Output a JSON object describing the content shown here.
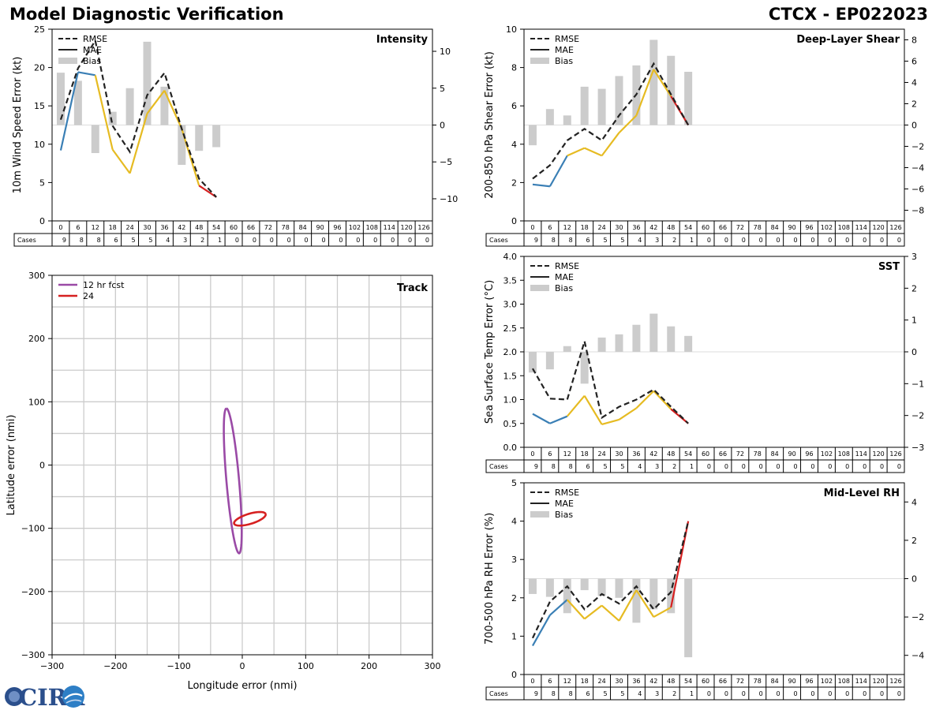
{
  "header": {
    "title": "Model Diagnostic Verification",
    "storm_id": "CTCX - EP022023"
  },
  "logo": {
    "text": "CIRA"
  },
  "colors": {
    "rmse": "#222222",
    "mae_early": "#3a7fb5",
    "mae_mid": "#e6bb22",
    "mae_late": "#d62020",
    "bias": "#cccccc",
    "grid": "#cccccc",
    "track_12": "#9a4aa6",
    "track_24": "#d62020"
  },
  "lead_times": [
    "0",
    "6",
    "12",
    "18",
    "24",
    "30",
    "36",
    "42",
    "48",
    "54",
    "60",
    "66",
    "72",
    "78",
    "84",
    "90",
    "96",
    "102",
    "108",
    "114",
    "120",
    "126"
  ],
  "cases": {
    "label": "Cases",
    "values": [
      "9",
      "8",
      "8",
      "6",
      "5",
      "5",
      "4",
      "3",
      "2",
      "1",
      "0",
      "0",
      "0",
      "0",
      "0",
      "0",
      "0",
      "0",
      "0",
      "0",
      "0",
      "0"
    ]
  },
  "legend_labels": {
    "rmse": "RMSE",
    "mae": "MAE",
    "bias": "Bias"
  },
  "chart_data": [
    {
      "id": "intensity",
      "type": "line",
      "title": "Intensity",
      "ylabel": "10m Wind Speed Error (kt)",
      "x": [
        0,
        6,
        12,
        18,
        24,
        30,
        36,
        42,
        48,
        54
      ],
      "ylim": [
        0,
        25
      ],
      "yticks": [
        "0",
        "5",
        "10",
        "15",
        "20",
        "25"
      ],
      "y2lim": [
        -13,
        13
      ],
      "y2ticks": [
        -10,
        -5,
        0,
        5,
        10
      ],
      "y2ticklabels": [
        "−10",
        "−5",
        "0",
        "5",
        "10"
      ],
      "series": [
        {
          "name": "RMSE",
          "values": [
            13.2,
            19.9,
            23.5,
            12.4,
            9.0,
            16.4,
            19.3,
            12.0,
            5.5,
            3.1
          ]
        },
        {
          "name": "MAE",
          "values": [
            9.2,
            19.4,
            19.0,
            9.3,
            6.2,
            14.0,
            17.0,
            12.0,
            4.6,
            3.1
          ]
        },
        {
          "name": "Bias",
          "values": [
            7.1,
            6.0,
            -3.8,
            1.8,
            5.0,
            11.3,
            5.2,
            -5.4,
            -3.5,
            -3.0
          ]
        }
      ]
    },
    {
      "id": "shear",
      "type": "line",
      "title": "Deep-Layer Shear",
      "ylabel": "200-850 hPa Shear Error (kt)",
      "x": [
        0,
        6,
        12,
        18,
        24,
        30,
        36,
        42,
        48,
        54
      ],
      "ylim": [
        0,
        10
      ],
      "yticks": [
        "0",
        "2",
        "4",
        "6",
        "8",
        "10"
      ],
      "y2lim": [
        -9,
        9
      ],
      "y2ticks": [
        -8,
        -6,
        -4,
        -2,
        0,
        2,
        4,
        6,
        8
      ],
      "y2ticklabels": [
        "−8",
        "−6",
        "−4",
        "−2",
        "0",
        "2",
        "4",
        "6",
        "8"
      ],
      "series": [
        {
          "name": "RMSE",
          "values": [
            2.2,
            2.9,
            4.2,
            4.8,
            4.2,
            5.5,
            6.6,
            8.2,
            6.6,
            5.0
          ]
        },
        {
          "name": "MAE",
          "values": [
            1.9,
            1.8,
            3.4,
            3.8,
            3.4,
            4.6,
            5.5,
            7.9,
            6.5,
            5.0
          ]
        },
        {
          "name": "Bias",
          "values": [
            -1.9,
            1.5,
            0.9,
            3.6,
            3.4,
            4.6,
            5.6,
            8.0,
            6.5,
            5.0
          ]
        }
      ]
    },
    {
      "id": "sst",
      "type": "line",
      "title": "SST",
      "ylabel": "Sea Surface Temp Error (°C)",
      "x": [
        0,
        6,
        12,
        18,
        24,
        30,
        36,
        42,
        48,
        54
      ],
      "ylim": [
        0,
        4
      ],
      "yticks": [
        "0.0",
        "0.5",
        "1.0",
        "1.5",
        "2.0",
        "2.5",
        "3.0",
        "3.5",
        "4.0"
      ],
      "y2lim": [
        -3,
        3
      ],
      "y2ticks": [
        -3,
        -2,
        -1,
        0,
        1,
        2,
        3
      ],
      "y2ticklabels": [
        "−3",
        "−2",
        "−1",
        "0",
        "1",
        "2",
        "3"
      ],
      "series": [
        {
          "name": "RMSE",
          "values": [
            1.65,
            1.02,
            1.0,
            2.22,
            0.62,
            0.85,
            1.0,
            1.21,
            0.85,
            0.5
          ]
        },
        {
          "name": "MAE",
          "values": [
            0.7,
            0.5,
            0.65,
            1.08,
            0.48,
            0.58,
            0.82,
            1.18,
            0.8,
            0.5
          ]
        },
        {
          "name": "Bias",
          "values": [
            -0.65,
            -0.55,
            0.18,
            -1.0,
            0.45,
            0.55,
            0.85,
            1.2,
            0.8,
            0.5
          ]
        }
      ]
    },
    {
      "id": "rh",
      "type": "line",
      "title": "Mid-Level RH",
      "ylabel": "700-500 hPa RH Error (%)",
      "x": [
        0,
        6,
        12,
        18,
        24,
        30,
        36,
        42,
        48,
        54
      ],
      "ylim": [
        0,
        5
      ],
      "yticks": [
        "0",
        "1",
        "2",
        "3",
        "4",
        "5"
      ],
      "y2lim": [
        -5,
        5
      ],
      "y2ticks": [
        -4,
        -2,
        0,
        2,
        4
      ],
      "y2ticklabels": [
        "−4",
        "−2",
        "0",
        "2",
        "4"
      ],
      "series": [
        {
          "name": "RMSE",
          "values": [
            0.95,
            1.9,
            2.3,
            1.7,
            2.1,
            1.85,
            2.3,
            1.7,
            2.15,
            4.0
          ]
        },
        {
          "name": "MAE",
          "values": [
            0.75,
            1.55,
            1.95,
            1.45,
            1.8,
            1.4,
            2.2,
            1.5,
            1.75,
            4.0
          ]
        },
        {
          "name": "Bias",
          "values": [
            -0.8,
            -0.95,
            -1.8,
            -0.6,
            -0.9,
            -1.0,
            -2.3,
            -1.6,
            -1.8,
            -4.1
          ]
        }
      ]
    },
    {
      "id": "track",
      "type": "line",
      "title": "Track",
      "xlabel": "Longitude error (nmi)",
      "ylabel": "Latitude error (nmi)",
      "xlim": [
        -300,
        300
      ],
      "ylim": [
        -300,
        300
      ],
      "xticks": [
        -300,
        -200,
        -100,
        0,
        100,
        200,
        300
      ],
      "xticklabels": [
        "−300",
        "−200",
        "−100",
        "0",
        "100",
        "200",
        "300"
      ],
      "yticks": [
        -300,
        -200,
        -100,
        0,
        100,
        200,
        300
      ],
      "yticklabels": [
        "−300",
        "−200",
        "−100",
        "0",
        "100",
        "200",
        "300"
      ],
      "series": [
        {
          "name": "12 hr fcst",
          "ellipse": {
            "cx": -15,
            "cy": -25,
            "half_axis_major": 115,
            "half_axis_minor": 10,
            "angle_deg": 95
          }
        },
        {
          "name": "24",
          "ellipse": {
            "cx": 12,
            "cy": -85,
            "half_axis_major": 26,
            "half_axis_minor": 8,
            "angle_deg": 17
          }
        }
      ]
    }
  ]
}
